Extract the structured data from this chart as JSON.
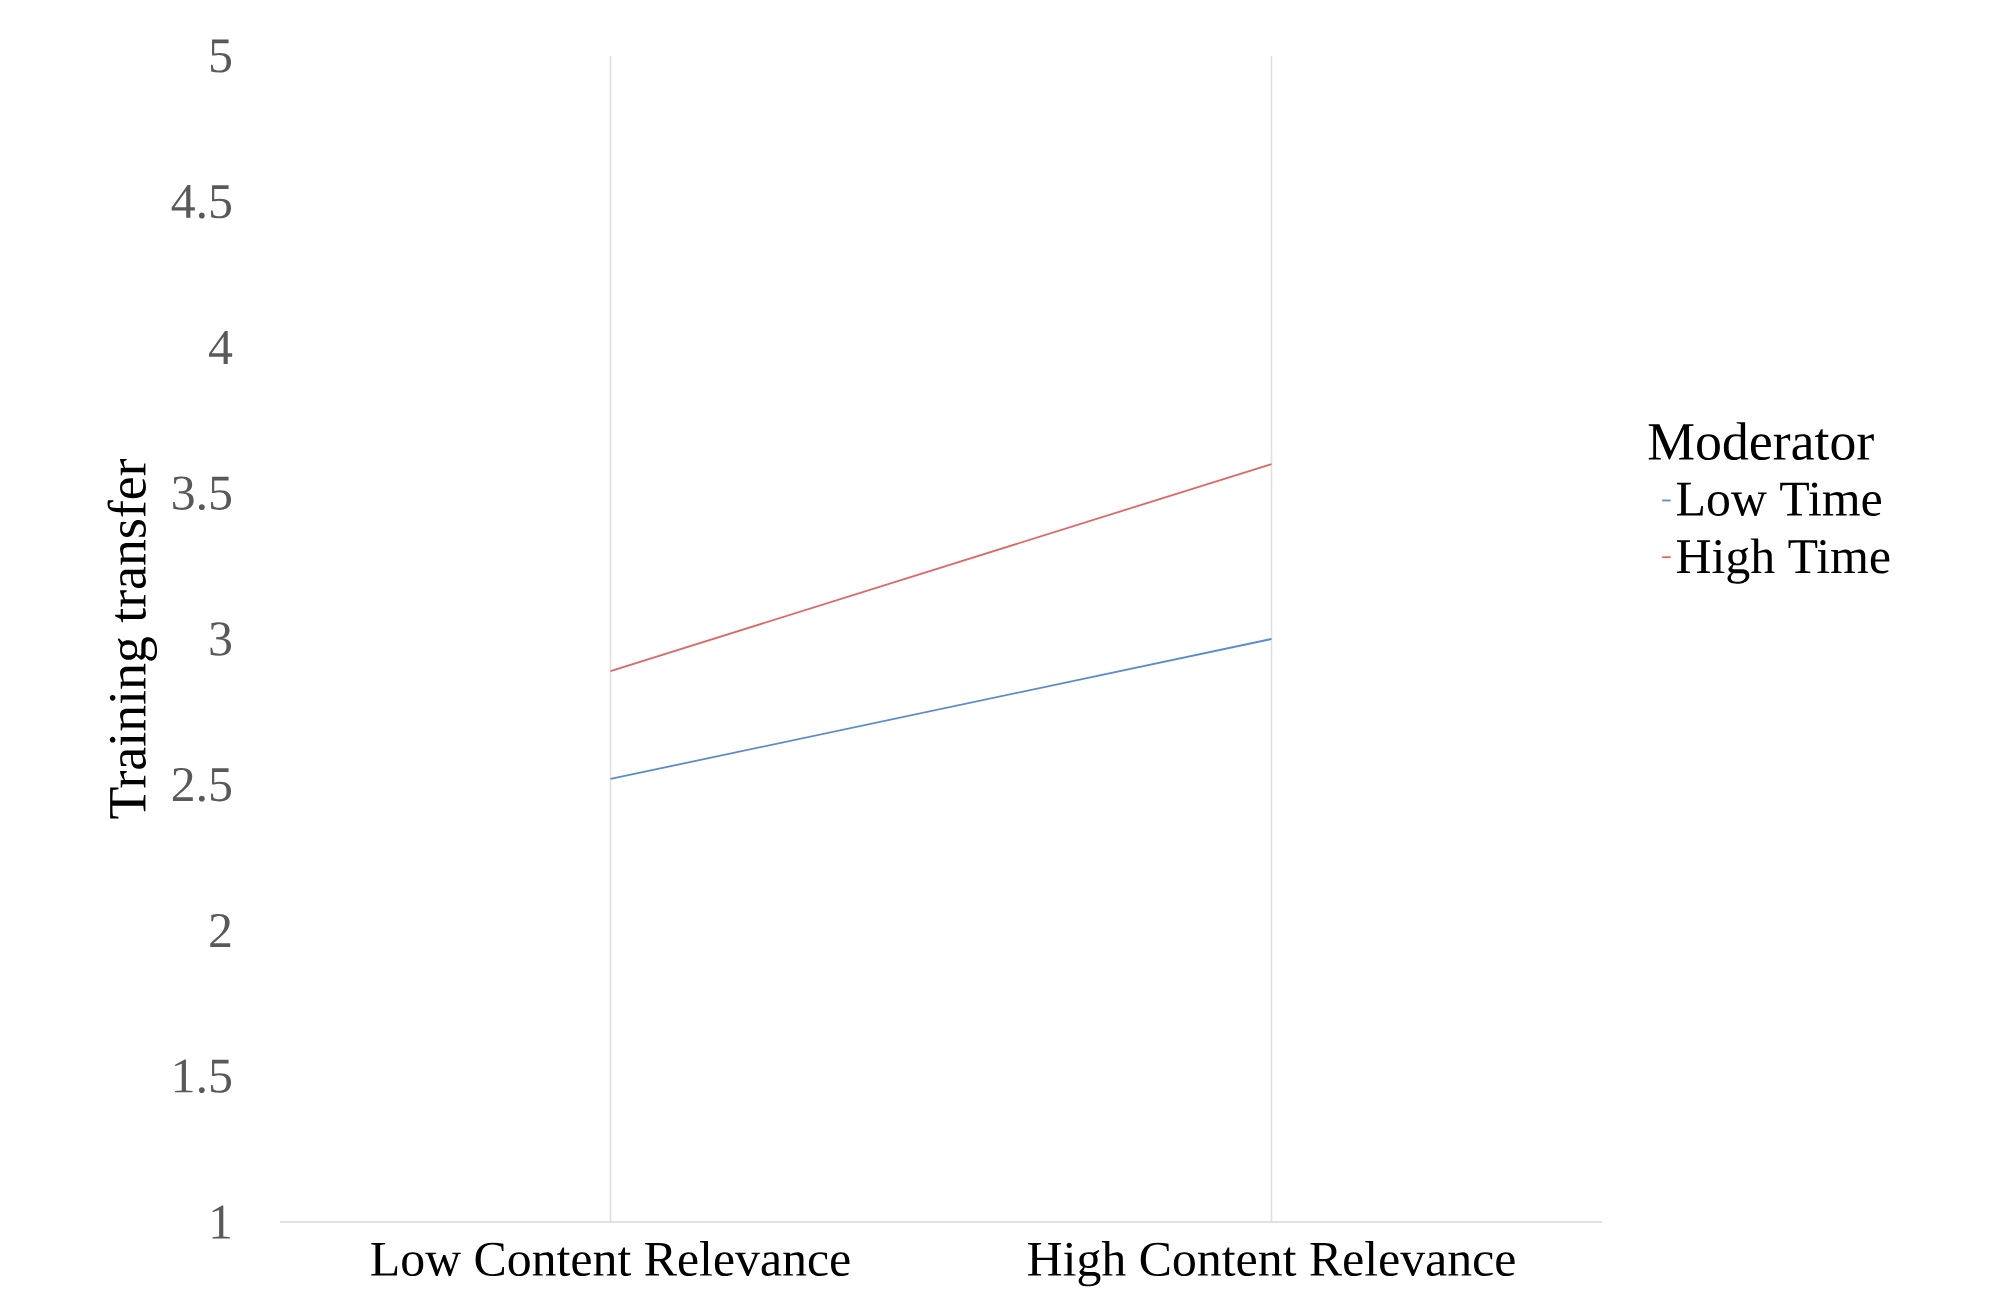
{
  "chart_data": {
    "type": "line",
    "ylabel": "Training transfer",
    "legend_title": "Moderator",
    "categories": [
      "Low Content Relevance",
      "High Content Relevance"
    ],
    "series": [
      {
        "name": "Low Time",
        "color": "#5b8bd0",
        "values": [
          2.52,
          3.0
        ]
      },
      {
        "name": "High Time",
        "color": "#e06666",
        "values": [
          2.89,
          3.6
        ]
      }
    ],
    "ylim": [
      1,
      5
    ],
    "yticks": [
      1,
      1.5,
      2,
      2.5,
      3,
      3.5,
      4,
      4.5,
      5
    ],
    "grid": "x",
    "legend": "right"
  }
}
